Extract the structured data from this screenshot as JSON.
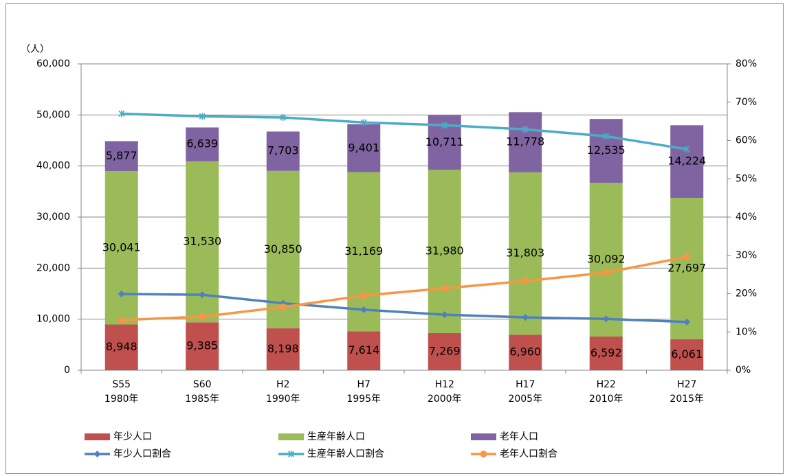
{
  "chart_data": {
    "type": "bar",
    "stacked": true,
    "y_unit_label": "（人）",
    "categories": [
      [
        "S55",
        "1980年"
      ],
      [
        "S60",
        "1985年"
      ],
      [
        "H2",
        "1990年"
      ],
      [
        "H7",
        "1995年"
      ],
      [
        "H12",
        "2000年"
      ],
      [
        "H17",
        "2005年"
      ],
      [
        "H22",
        "2010年"
      ],
      [
        "H27",
        "2015年"
      ]
    ],
    "ylim": [
      0,
      60000
    ],
    "yticks": [
      0,
      {
        "value": 10000,
        "label": "10,000"
      },
      {
        "value": 20000,
        "label": "20,000"
      },
      {
        "value": 30000,
        "label": "30,000"
      },
      {
        "value": 40000,
        "label": "40,000"
      },
      {
        "value": 50000,
        "label": "50,000"
      },
      {
        "value": 60000,
        "label": "60,000"
      }
    ],
    "y2lim": [
      0,
      80
    ],
    "y2ticks": [
      {
        "value": 0,
        "label": "0%"
      },
      {
        "value": 10,
        "label": "10%"
      },
      {
        "value": 20,
        "label": "20%"
      },
      {
        "value": 30,
        "label": "30%"
      },
      {
        "value": 40,
        "label": "40%"
      },
      {
        "value": 50,
        "label": "50%"
      },
      {
        "value": 60,
        "label": "60%"
      },
      {
        "value": 70,
        "label": "70%"
      },
      {
        "value": 80,
        "label": "80%"
      }
    ],
    "grid": true,
    "legend": "bottom",
    "series": [
      {
        "name": "年少人口",
        "type": "bar",
        "color": "#c0504d",
        "values": [
          8948,
          9385,
          8198,
          7614,
          7269,
          6960,
          6592,
          6061
        ],
        "value_labels": [
          "8,948",
          "9,385",
          "8,198",
          "7,614",
          "7,269",
          "6,960",
          "6,592",
          "6,061"
        ]
      },
      {
        "name": "生産年齢人口",
        "type": "bar",
        "color": "#9bbb59",
        "values": [
          30041,
          31530,
          30850,
          31169,
          31980,
          31803,
          30092,
          27697
        ],
        "value_labels": [
          "30,041",
          "31,530",
          "30,850",
          "31,169",
          "31,980",
          "31,803",
          "30,092",
          "27,697"
        ]
      },
      {
        "name": "老年人口",
        "type": "bar",
        "color": "#8064a2",
        "values": [
          5877,
          6639,
          7703,
          9401,
          10711,
          11778,
          12535,
          14224
        ],
        "value_labels": [
          "5,877",
          "6,639",
          "7,703",
          "9,401",
          "10,711",
          "11,778",
          "12,535",
          "14,224"
        ]
      },
      {
        "name": "年少人口割合",
        "type": "line",
        "axis": "y2",
        "marker": "diamond",
        "color": "#4f81bd",
        "values": [
          19.9,
          19.7,
          17.5,
          15.8,
          14.5,
          13.8,
          13.4,
          12.6
        ]
      },
      {
        "name": "生産年齢人口割合",
        "type": "line",
        "axis": "y2",
        "marker": "star",
        "color": "#4bacc6",
        "values": [
          67.0,
          66.3,
          66.0,
          64.7,
          64.0,
          62.9,
          61.1,
          57.7
        ]
      },
      {
        "name": "老年人口割合",
        "type": "line",
        "axis": "y2",
        "marker": "circle",
        "color": "#f79646",
        "values": [
          13.1,
          14.0,
          16.5,
          19.5,
          21.4,
          23.3,
          25.5,
          29.6
        ]
      }
    ]
  }
}
